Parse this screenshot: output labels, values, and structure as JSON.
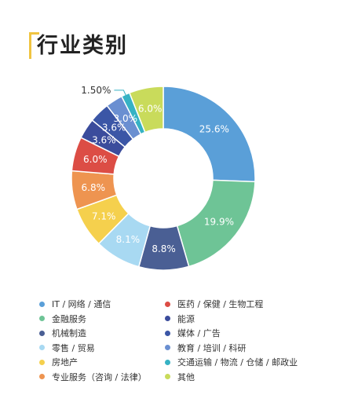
{
  "title": "行业类别",
  "chart_data": {
    "type": "pie",
    "donut": true,
    "title": "行业类别",
    "series": [
      {
        "name": "IT / 网络 / 通信",
        "value": 25.6,
        "label": "25.6%",
        "color": "#5a9fd8"
      },
      {
        "name": "金融服务",
        "value": 19.9,
        "label": "19.9%",
        "color": "#6ec496"
      },
      {
        "name": "机械制造",
        "value": 8.8,
        "label": "8.8%",
        "color": "#4a5f94"
      },
      {
        "name": "零售 / 贸易",
        "value": 8.1,
        "label": "8.1%",
        "color": "#a8d9f2"
      },
      {
        "name": "房地产",
        "value": 7.1,
        "label": "7.1%",
        "color": "#f5d04d"
      },
      {
        "name": "专业服务（咨询 / 法律）",
        "value": 6.8,
        "label": "6.8%",
        "color": "#ee9450"
      },
      {
        "name": "医药 / 保健 / 生物工程",
        "value": 6.0,
        "label": "6.0%",
        "color": "#dc4d45"
      },
      {
        "name": "能源",
        "value": 3.6,
        "label": "3.6%",
        "color": "#3b4c9c"
      },
      {
        "name": "媒体 / 广告",
        "value": 3.6,
        "label": "3.6%",
        "color": "#3b56a6"
      },
      {
        "name": "教育 / 培训 / 科研",
        "value": 3.0,
        "label": "3.0%",
        "color": "#6a8fd1"
      },
      {
        "name": "交通运输 / 物流 / 仓储 / 邮政业",
        "value": 1.5,
        "label": "1.50%",
        "color": "#36b2c4"
      },
      {
        "name": "其他",
        "value": 6.0,
        "label": "6.0%",
        "color": "#c9db5b"
      }
    ],
    "legend_order": [
      "IT / 网络 / 通信",
      "医药 / 保健 / 生物工程",
      "金融服务",
      "能源",
      "机械制造",
      "媒体 / 广告",
      "零售 / 贸易",
      "教育 / 培训 / 科研",
      "房地产",
      "交通运输 / 物流 / 仓储 / 邮政业",
      "专业服务（咨询 / 法律）",
      "其他"
    ],
    "legend_placement": "bottom"
  }
}
